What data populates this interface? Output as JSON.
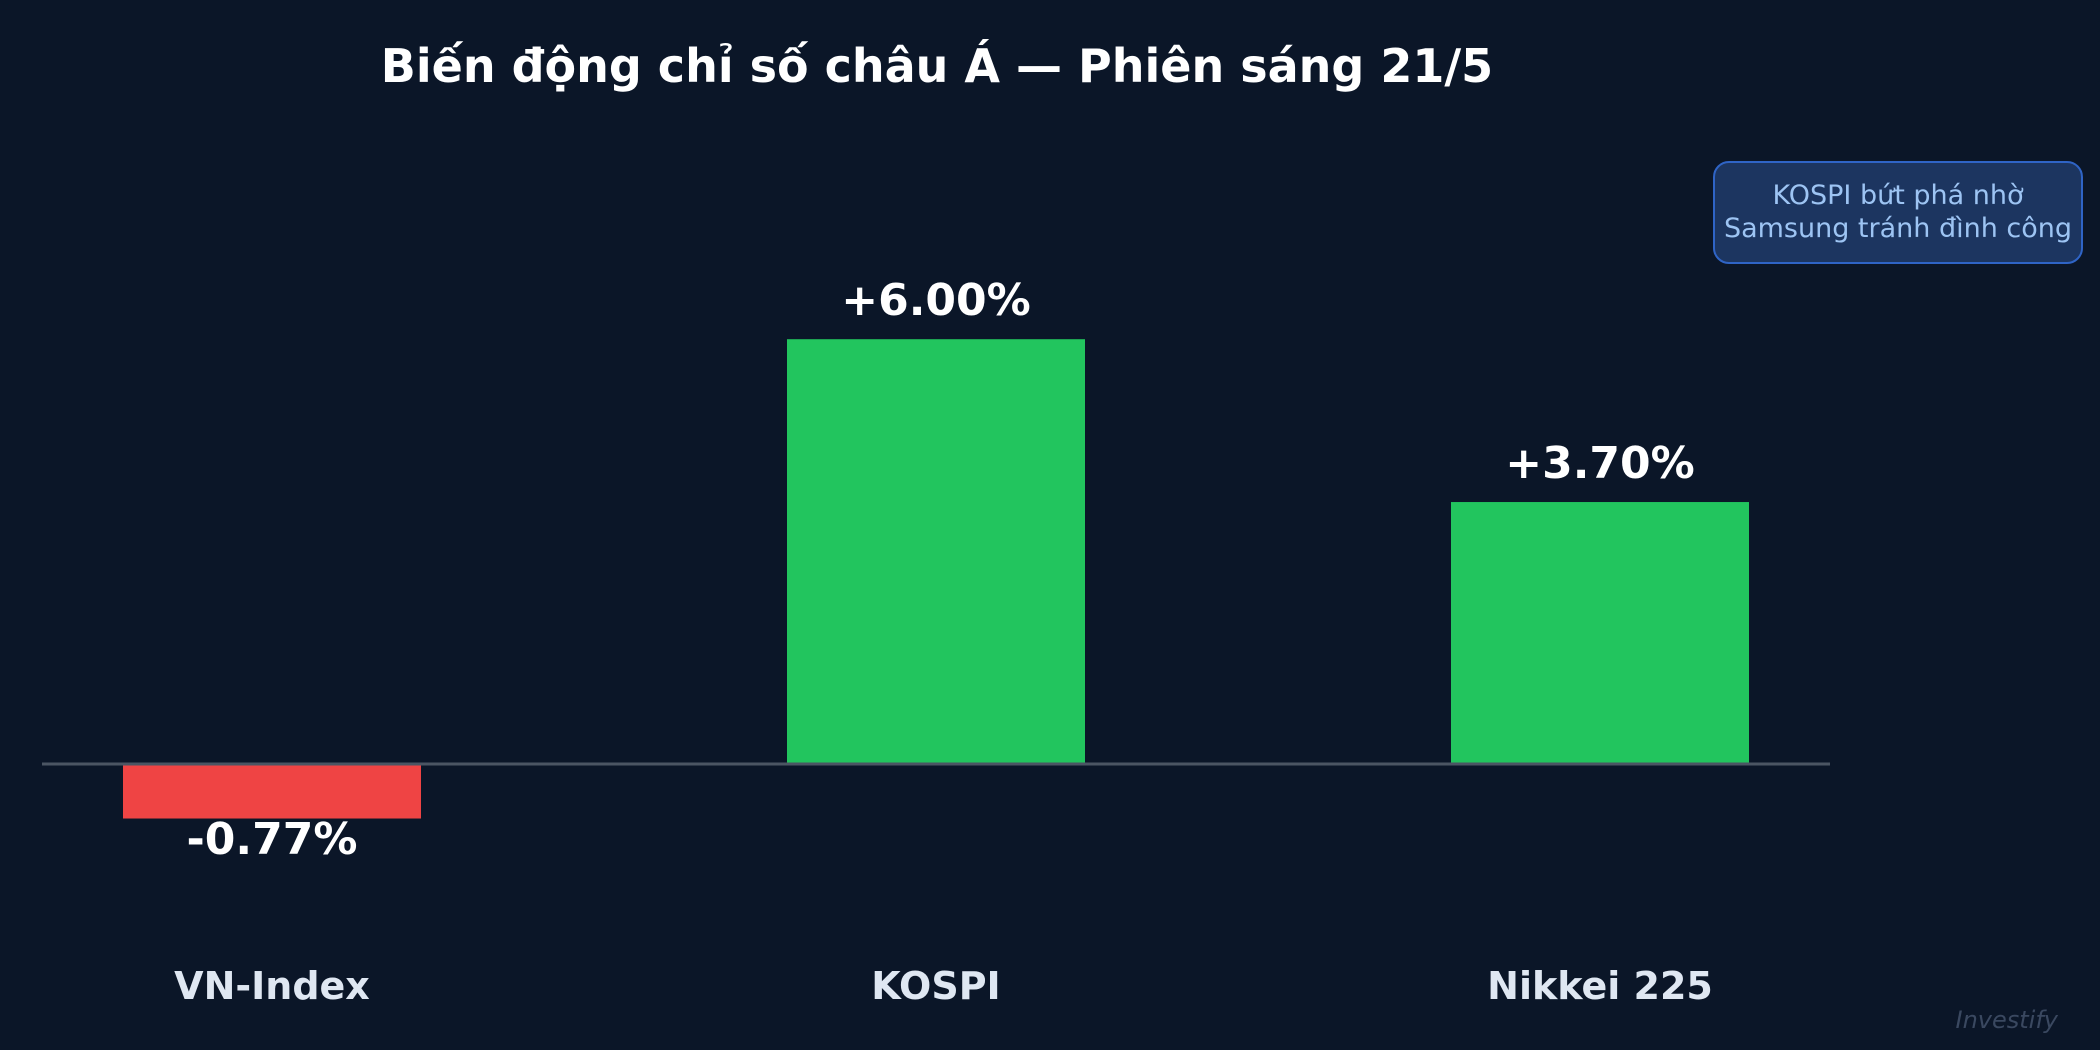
{
  "chart_data": {
    "type": "bar",
    "title": "Biến động chỉ số châu Á — Phiên sáng 21/5",
    "categories": [
      "VN-Index",
      "KOSPI",
      "Nikkei 225"
    ],
    "values": [
      -0.77,
      6.0,
      3.7
    ],
    "value_labels": [
      "-0.77%",
      "+6.00%",
      "+3.70%"
    ],
    "xlabel": "",
    "ylabel": "",
    "grid": false,
    "legend": "none",
    "colors": {
      "negative": "#ef4444",
      "positive": "#22c55e",
      "background": "#0b1628",
      "baseline": "#4b5563"
    }
  },
  "annotation": {
    "lines": [
      "KOSPI bứt phá nhờ",
      "Samsung tránh đình công"
    ]
  },
  "watermark": "Investify"
}
